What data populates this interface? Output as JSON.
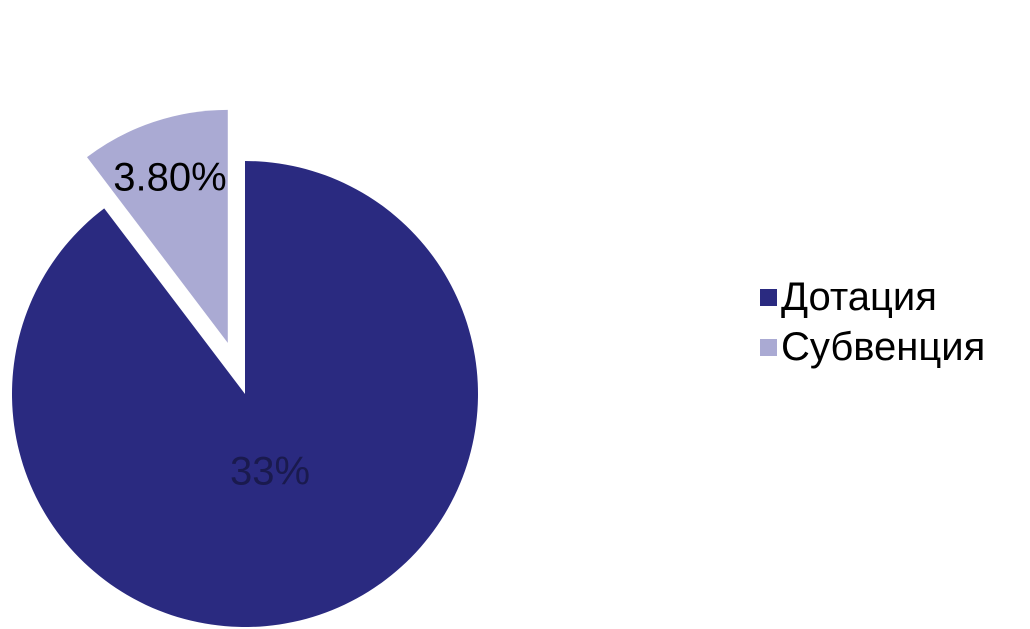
{
  "chart_data": {
    "type": "pie",
    "slices": [
      {
        "label": "Дотация",
        "value": 33,
        "value_label": "33%",
        "color": "#2a2a80",
        "label_color": "#1a1a4e",
        "exploded": false
      },
      {
        "label": "Субвенция",
        "value": 3.8,
        "value_label": "3.80%",
        "color": "#aaaad3",
        "label_color": "#000000",
        "exploded": true
      }
    ],
    "legend": {
      "position": "right",
      "entries": [
        "Дотация",
        "Субвенция"
      ]
    },
    "title": ""
  }
}
